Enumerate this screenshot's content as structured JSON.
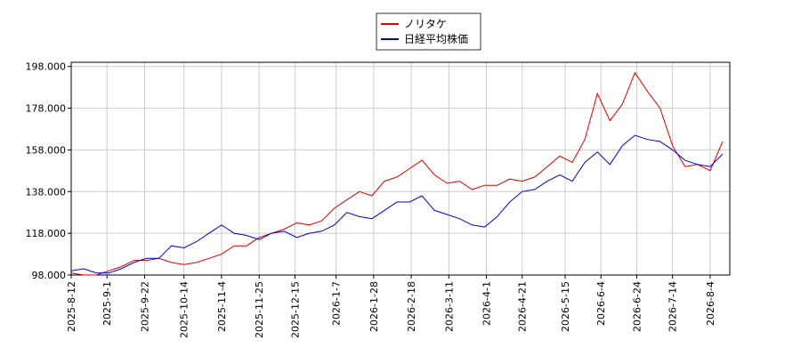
{
  "chart_data": {
    "type": "line",
    "x": [
      "2025-8-12",
      "2025-8-19",
      "2025-8-26",
      "2025-9-2",
      "2025-9-9",
      "2025-9-16",
      "2025-9-23",
      "2025-9-30",
      "2025-10-7",
      "2025-10-14",
      "2025-10-21",
      "2025-10-28",
      "2025-11-4",
      "2025-11-11",
      "2025-11-18",
      "2025-11-25",
      "2025-12-2",
      "2025-12-9",
      "2025-12-16",
      "2025-12-23",
      "2025-12-30",
      "2026-1-6",
      "2026-1-13",
      "2026-1-20",
      "2026-1-27",
      "2026-2-3",
      "2026-2-10",
      "2026-2-17",
      "2026-2-24",
      "2026-3-3",
      "2026-3-10",
      "2026-3-17",
      "2026-3-24",
      "2026-3-31",
      "2026-4-7",
      "2026-4-14",
      "2026-4-21",
      "2026-4-28",
      "2026-5-5",
      "2026-5-12",
      "2026-5-19",
      "2026-5-26",
      "2026-6-2",
      "2026-6-9",
      "2026-6-16",
      "2026-6-23",
      "2026-6-30",
      "2026-7-7",
      "2026-7-14",
      "2026-7-21",
      "2026-7-28",
      "2026-8-4",
      "2026-8-11"
    ],
    "series": [
      {
        "name": "ノリタケ",
        "color": "#dd0000",
        "values": [
          99,
          98,
          98,
          100,
          102,
          105,
          105,
          106,
          104,
          103,
          104,
          106,
          108,
          112,
          112,
          116,
          118,
          120,
          123,
          122,
          124,
          130,
          134,
          138,
          136,
          143,
          145,
          149,
          153,
          146,
          142,
          143,
          139,
          141,
          141,
          144,
          143,
          145,
          150,
          155,
          152,
          163,
          185,
          172,
          180,
          195,
          186,
          178,
          160,
          150,
          151,
          148,
          162
        ]
      },
      {
        "name": "日経平均株価",
        "color": "#0000cc",
        "values": [
          100,
          101,
          99,
          99,
          101,
          104,
          106,
          106,
          112,
          111,
          114,
          118,
          122,
          118,
          117,
          115,
          118,
          119,
          116,
          118,
          119,
          122,
          128,
          126,
          125,
          129,
          133,
          133,
          136,
          129,
          127,
          125,
          122,
          121,
          126,
          133,
          138,
          139,
          143,
          146,
          143,
          152,
          157,
          151,
          160,
          165,
          163,
          162,
          158,
          153,
          151,
          150,
          156
        ]
      }
    ],
    "xlim": [
      "2025-8-12",
      "2026-8-15"
    ],
    "xticks": [
      "2025-8-12",
      "2025-9-1",
      "2025-9-22",
      "2025-10-14",
      "2025-11-4",
      "2025-11-25",
      "2025-12-15",
      "2026-1-7",
      "2026-1-28",
      "2026-2-18",
      "2026-3-11",
      "2026-4-1",
      "2026-4-21",
      "2026-5-15",
      "2026-6-4",
      "2026-6-24",
      "2026-7-14",
      "2026-8-4"
    ],
    "ylim": [
      98,
      200
    ],
    "yticks": [
      {
        "value": 98,
        "label": "98.000"
      },
      {
        "value": 118,
        "label": "118.000"
      },
      {
        "value": 138,
        "label": "138.000"
      },
      {
        "value": 158,
        "label": "158.000"
      },
      {
        "value": 178,
        "label": "178.000"
      },
      {
        "value": 198,
        "label": "198.000"
      }
    ],
    "grid": true,
    "legend": "upper center"
  }
}
